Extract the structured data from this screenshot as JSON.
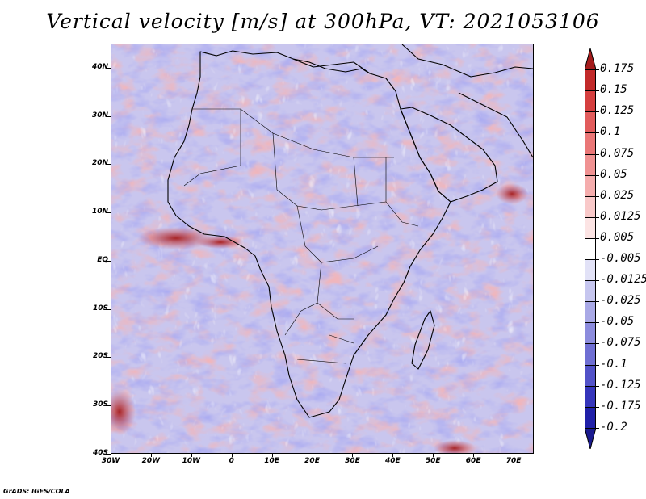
{
  "title": "Vertical velocity [m/s] at 300hPa, VT: 2021053106",
  "footer": "GrADS: IGES/COLA",
  "map": {
    "lat_labels": [
      "40N",
      "30N",
      "20N",
      "10N",
      "EQ",
      "10S",
      "20S",
      "30S",
      "40S"
    ],
    "lon_labels": [
      "30W",
      "20W",
      "10W",
      "0",
      "10E",
      "20E",
      "30E",
      "40E",
      "50E",
      "60E",
      "70E"
    ],
    "lon_range": [
      -30,
      75
    ],
    "lat_range": [
      -40,
      45
    ]
  },
  "colorbar": {
    "labels": [
      "0.175",
      "0.15",
      "0.125",
      "0.1",
      "0.075",
      "0.05",
      "0.025",
      "0.0125",
      "0.005",
      "-0.005",
      "-0.0125",
      "-0.025",
      "-0.05",
      "-0.075",
      "-0.1",
      "-0.125",
      "-0.175",
      "-0.2"
    ],
    "colors": [
      "#a51c1c",
      "#c22a2a",
      "#d53f3f",
      "#e25c5c",
      "#ea7777",
      "#f09292",
      "#f5adad",
      "#f9c9c9",
      "#fce4e4",
      "#ffffff",
      "#e2e2f7",
      "#c6c6ef",
      "#a9a9e6",
      "#8c8cdd",
      "#6f6fd3",
      "#5252c8",
      "#3535bb",
      "#2020a8",
      "#1a1a8f"
    ]
  },
  "colors": {
    "positive_strong": "#b51e1e",
    "positive_weak": "#f2a7a7",
    "negative_weak": "#b3b3ea",
    "negative_strong": "#3a3ab8",
    "coastline": "#000000"
  }
}
